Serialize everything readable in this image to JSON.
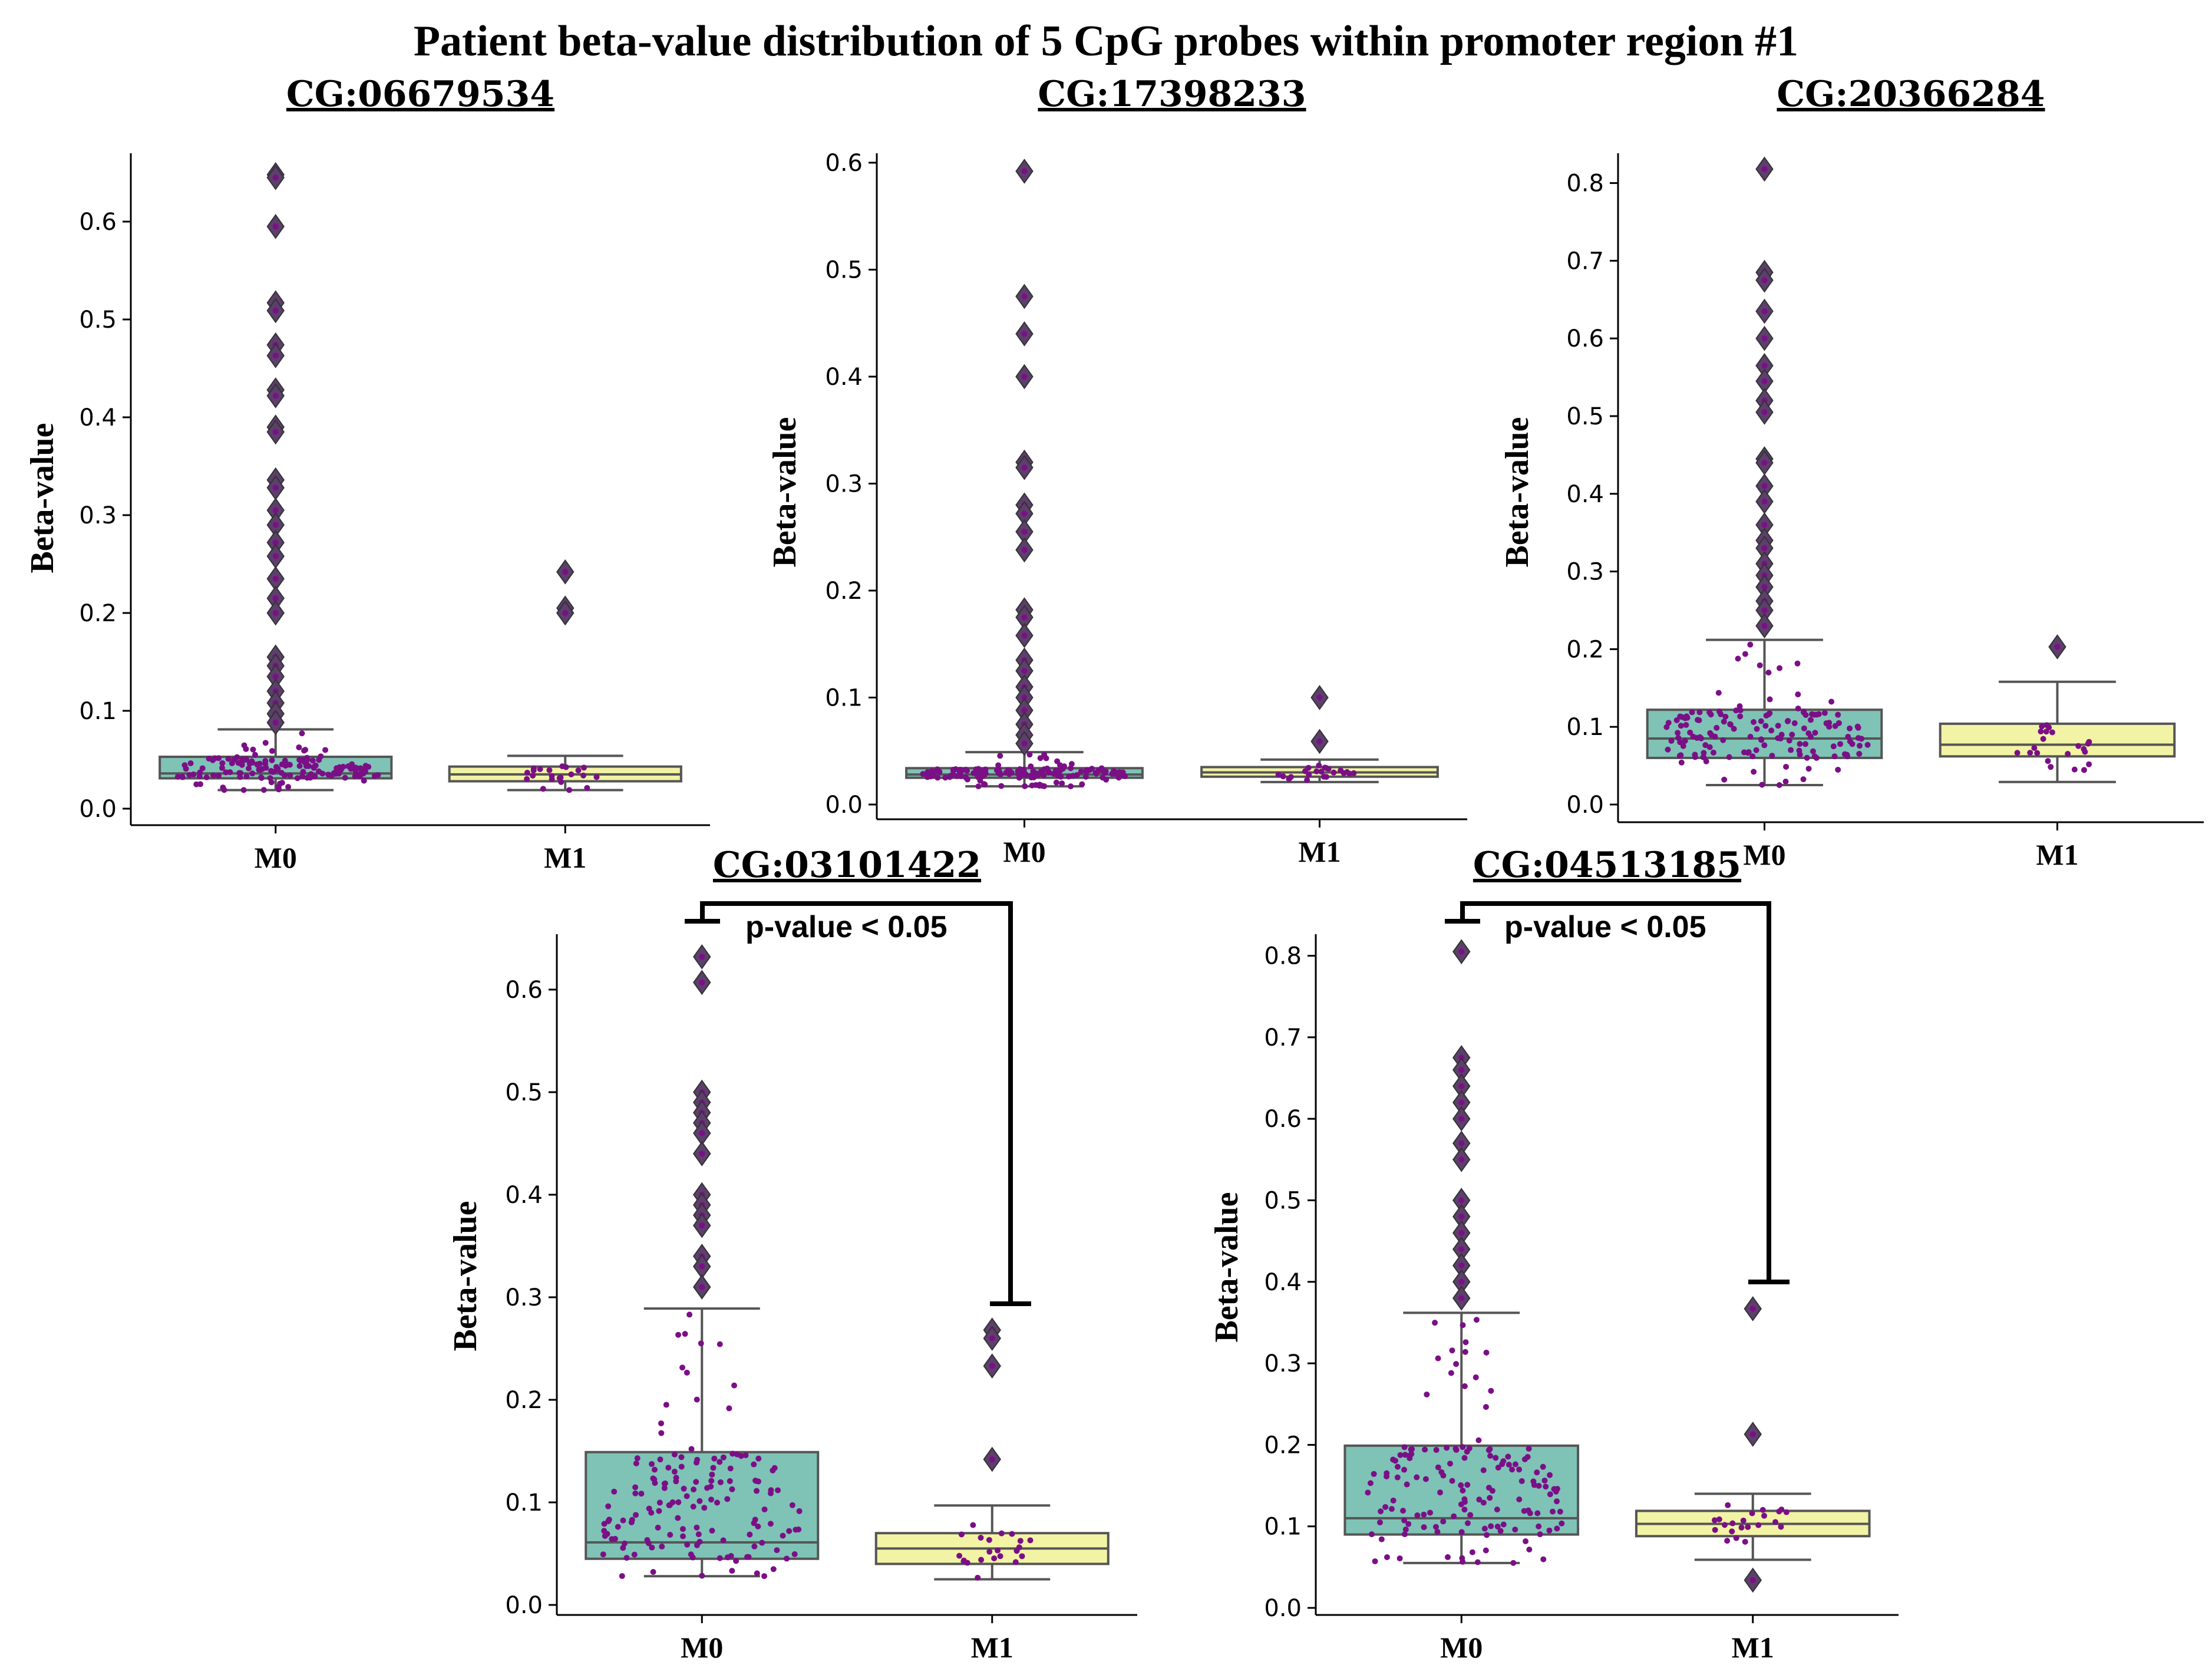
{
  "title": "Patient beta-value distribution of 5 CpG probes within promoter region #1",
  "colors": {
    "M0": "#7fc3b6",
    "M1": "#f3f3a5",
    "box_edge": "#555555",
    "points": "#7b0f86",
    "outlier": "#5c3f6b"
  },
  "chart_data": [
    {
      "type": "box",
      "title": "CG:06679534",
      "ylabel": "Beta-value",
      "categories": [
        "M0",
        "M1"
      ],
      "ylim": [
        -0.01,
        0.675
      ],
      "yticks": [
        "0.0",
        "0.1",
        "0.2",
        "0.3",
        "0.4",
        "0.5",
        "0.6"
      ],
      "series": [
        {
          "name": "M0",
          "q1": 0.031,
          "median": 0.036,
          "q3": 0.053,
          "whisker_low": 0.019,
          "whisker_high": 0.081,
          "outliers": [
            0.648,
            0.645,
            0.595,
            0.517,
            0.509,
            0.474,
            0.463,
            0.428,
            0.422,
            0.39,
            0.385,
            0.336,
            0.328,
            0.305,
            0.29,
            0.272,
            0.258,
            0.235,
            0.215,
            0.2,
            0.155,
            0.146,
            0.135,
            0.12,
            0.108,
            0.097,
            0.088
          ]
        },
        {
          "name": "M1",
          "q1": 0.028,
          "median": 0.035,
          "q3": 0.043,
          "whisker_low": 0.019,
          "whisker_high": 0.054,
          "outliers": [
            0.242,
            0.205,
            0.2
          ]
        }
      ]
    },
    {
      "type": "box",
      "title": "CG:17398233",
      "ylabel": "Beta-value",
      "categories": [
        "M0",
        "M1"
      ],
      "ylim": [
        -0.01,
        0.61
      ],
      "yticks": [
        "0.0",
        "0.1",
        "0.2",
        "0.3",
        "0.4",
        "0.5",
        "0.6"
      ],
      "series": [
        {
          "name": "M0",
          "q1": 0.025,
          "median": 0.028,
          "q3": 0.034,
          "whisker_low": 0.017,
          "whisker_high": 0.049,
          "outliers": [
            0.592,
            0.475,
            0.44,
            0.4,
            0.32,
            0.315,
            0.28,
            0.272,
            0.255,
            0.238,
            0.182,
            0.175,
            0.158,
            0.135,
            0.125,
            0.11,
            0.1,
            0.088,
            0.075,
            0.065,
            0.057
          ]
        },
        {
          "name": "M1",
          "q1": 0.026,
          "median": 0.03,
          "q3": 0.035,
          "whisker_low": 0.021,
          "whisker_high": 0.042,
          "outliers": [
            0.1,
            0.059
          ]
        }
      ]
    },
    {
      "type": "box",
      "title": "CG:20366284",
      "ylabel": "Beta-value",
      "categories": [
        "M0",
        "M1"
      ],
      "ylim": [
        -0.015,
        0.835
      ],
      "yticks": [
        "0.0",
        "0.1",
        "0.2",
        "0.3",
        "0.4",
        "0.5",
        "0.6",
        "0.7",
        "0.8"
      ],
      "series": [
        {
          "name": "M0",
          "q1": 0.06,
          "median": 0.085,
          "q3": 0.122,
          "whisker_low": 0.025,
          "whisker_high": 0.212,
          "outliers": [
            0.818,
            0.685,
            0.675,
            0.635,
            0.6,
            0.565,
            0.545,
            0.52,
            0.505,
            0.445,
            0.44,
            0.41,
            0.39,
            0.36,
            0.34,
            0.33,
            0.31,
            0.295,
            0.28,
            0.262,
            0.25,
            0.23
          ]
        },
        {
          "name": "M1",
          "q1": 0.062,
          "median": 0.077,
          "q3": 0.104,
          "whisker_low": 0.029,
          "whisker_high": 0.158,
          "outliers": [
            0.203
          ]
        }
      ]
    },
    {
      "type": "box",
      "title": "CG:03101422",
      "ylabel": "Beta-value",
      "categories": [
        "M0",
        "M1"
      ],
      "ylim": [
        -0.01,
        0.66
      ],
      "yticks": [
        "0.0",
        "0.1",
        "0.2",
        "0.3",
        "0.4",
        "0.5",
        "0.6"
      ],
      "annotation": "p-value < 0.05",
      "series": [
        {
          "name": "M0",
          "q1": 0.045,
          "median": 0.061,
          "q3": 0.149,
          "whisker_low": 0.028,
          "whisker_high": 0.289,
          "outliers": [
            0.632,
            0.607,
            0.5,
            0.49,
            0.48,
            0.47,
            0.46,
            0.44,
            0.44,
            0.4,
            0.39,
            0.38,
            0.37,
            0.34,
            0.33,
            0.31
          ]
        },
        {
          "name": "M1",
          "q1": 0.04,
          "median": 0.055,
          "q3": 0.07,
          "whisker_low": 0.025,
          "whisker_high": 0.097,
          "outliers": [
            0.268,
            0.26,
            0.233,
            0.142
          ]
        }
      ]
    },
    {
      "type": "box",
      "title": "CG:04513185",
      "ylabel": "Beta-value",
      "categories": [
        "M0",
        "M1"
      ],
      "ylim": [
        -0.01,
        0.835
      ],
      "yticks": [
        "0.0",
        "0.1",
        "0.2",
        "0.3",
        "0.4",
        "0.5",
        "0.6",
        "0.7",
        "0.8"
      ],
      "annotation": "p-value < 0.05",
      "series": [
        {
          "name": "M0",
          "q1": 0.09,
          "median": 0.11,
          "q3": 0.199,
          "whisker_low": 0.055,
          "whisker_high": 0.362,
          "outliers": [
            0.805,
            0.675,
            0.66,
            0.64,
            0.62,
            0.6,
            0.57,
            0.55,
            0.5,
            0.48,
            0.46,
            0.44,
            0.42,
            0.4,
            0.38
          ]
        },
        {
          "name": "M1",
          "q1": 0.088,
          "median": 0.103,
          "q3": 0.119,
          "whisker_low": 0.059,
          "whisker_high": 0.14,
          "outliers": [
            0.367,
            0.213,
            0.034
          ]
        }
      ]
    }
  ]
}
